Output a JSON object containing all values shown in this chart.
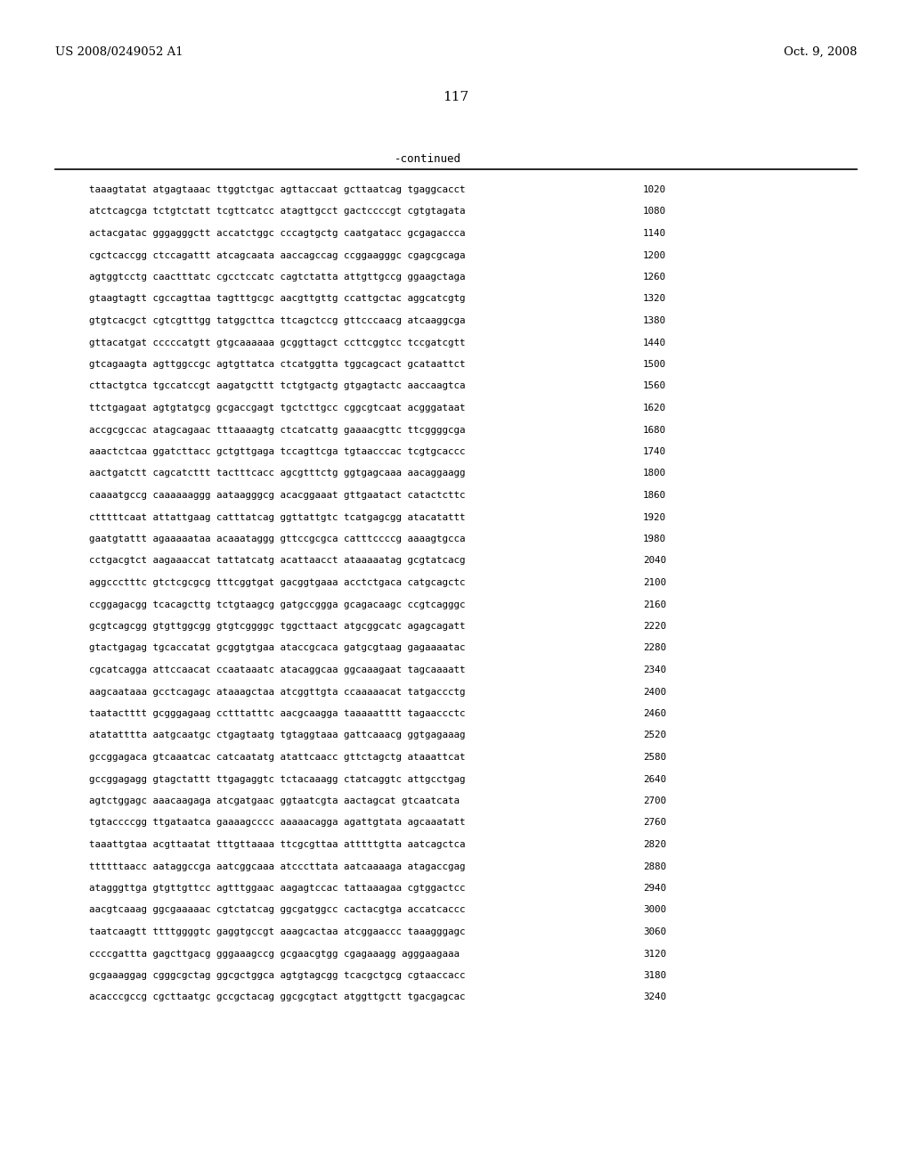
{
  "patent_number": "US 2008/0249052 A1",
  "date": "Oct. 9, 2008",
  "page_number": "117",
  "continued_label": "-continued",
  "background_color": "#ffffff",
  "text_color": "#000000",
  "sequence_lines": [
    {
      "seq": "taaagtatat atgagtaaac ttggtctgac agttaccaat gcttaatcag tgaggcacct",
      "num": "1020"
    },
    {
      "seq": "atctcagcga tctgtctatt tcgttcatcc atagttgcct gactccccgt cgtgtagata",
      "num": "1080"
    },
    {
      "seq": "actacgatac gggagggctt accatctggc cccagtgctg caatgatacc gcgagaccca",
      "num": "1140"
    },
    {
      "seq": "cgctcaccgg ctccagattt atcagcaata aaccagccag ccggaagggc cgagcgcaga",
      "num": "1200"
    },
    {
      "seq": "agtggtcctg caactttatc cgcctccatc cagtctatta attgttgccg ggaagctaga",
      "num": "1260"
    },
    {
      "seq": "gtaagtagtt cgccagttaa tagtttgcgc aacgttgttg ccattgctac aggcatcgtg",
      "num": "1320"
    },
    {
      "seq": "gtgtcacgct cgtcgtttgg tatggcttca ttcagctccg gttcccaacg atcaaggcga",
      "num": "1380"
    },
    {
      "seq": "gttacatgat cccccatgtt gtgcaaaaaa gcggttagct ccttcggtcc tccgatcgtt",
      "num": "1440"
    },
    {
      "seq": "gtcagaagta agttggccgc agtgttatca ctcatggtta tggcagcact gcataattct",
      "num": "1500"
    },
    {
      "seq": "cttactgtca tgccatccgt aagatgcttt tctgtgactg gtgagtactc aaccaagtca",
      "num": "1560"
    },
    {
      "seq": "ttctgagaat agtgtatgcg gcgaccgagt tgctcttgcc cggcgtcaat acgggataat",
      "num": "1620"
    },
    {
      "seq": "accgcgccac atagcagaac tttaaaagtg ctcatcattg gaaaacgttc ttcggggcga",
      "num": "1680"
    },
    {
      "seq": "aaactctcaa ggatcttacc gctgttgaga tccagttcga tgtaacccac tcgtgcaccc",
      "num": "1740"
    },
    {
      "seq": "aactgatctt cagcatcttt tactttcacc agcgtttctg ggtgagcaaa aacaggaagg",
      "num": "1800"
    },
    {
      "seq": "caaaatgccg caaaaaaggg aataagggcg acacggaaat gttgaatact catactcttc",
      "num": "1860"
    },
    {
      "seq": "ctttttcaat attattgaag catttatcag ggttattgtc tcatgagcgg atacatattt",
      "num": "1920"
    },
    {
      "seq": "gaatgtattt agaaaaataa acaaataggg gttccgcgca catttccccg aaaagtgcca",
      "num": "1980"
    },
    {
      "seq": "cctgacgtct aagaaaccat tattatcatg acattaacct ataaaaatag gcgtatcacg",
      "num": "2040"
    },
    {
      "seq": "aggccctttc gtctcgcgcg tttcggtgat gacggtgaaa acctctgaca catgcagctc",
      "num": "2100"
    },
    {
      "seq": "ccggagacgg tcacagcttg tctgtaagcg gatgccggga gcagacaagc ccgtcagggc",
      "num": "2160"
    },
    {
      "seq": "gcgtcagcgg gtgttggcgg gtgtcggggc tggcttaact atgcggcatc agagcagatt",
      "num": "2220"
    },
    {
      "seq": "gtactgagag tgcaccatat gcggtgtgaa ataccgcaca gatgcgtaag gagaaaatac",
      "num": "2280"
    },
    {
      "seq": "cgcatcagga attccaacat ccaataaatc atacaggcaa ggcaaagaat tagcaaaatt",
      "num": "2340"
    },
    {
      "seq": "aagcaataaa gcctcagagc ataaagctaa atcggttgta ccaaaaacat tatgaccctg",
      "num": "2400"
    },
    {
      "seq": "taatactttt gcgggagaag cctttatttc aacgcaagga taaaaatttt tagaaccctc",
      "num": "2460"
    },
    {
      "seq": "atatatttta aatgcaatgc ctgagtaatg tgtaggtaaa gattcaaacg ggtgagaaag",
      "num": "2520"
    },
    {
      "seq": "gccggagaca gtcaaatcac catcaatatg atattcaacc gttctagctg ataaattcat",
      "num": "2580"
    },
    {
      "seq": "gccggagagg gtagctattt ttgagaggtc tctacaaagg ctatcaggtc attgcctgag",
      "num": "2640"
    },
    {
      "seq": "agtctggagc aaacaagaga atcgatgaac ggtaatcgta aactagcat gtcaatcata",
      "num": "2700"
    },
    {
      "seq": "tgtaccccgg ttgataatca gaaaagcccc aaaaacagga agattgtata agcaaatatt",
      "num": "2760"
    },
    {
      "seq": "taaattgtaa acgttaatat tttgttaaaa ttcgcgttaa atttttgtta aatcagctca",
      "num": "2820"
    },
    {
      "seq": "ttttttaacc aataggccga aatcggcaaa atcccttata aatcaaaaga atagaccgag",
      "num": "2880"
    },
    {
      "seq": "atagggttga gtgttgttcc agtttggaac aagagtccac tattaaagaa cgtggactcc",
      "num": "2940"
    },
    {
      "seq": "aacgtcaaag ggcgaaaaac cgtctatcag ggcgatggcc cactacgtga accatcaccc",
      "num": "3000"
    },
    {
      "seq": "taatcaagtt ttttggggtc gaggtgccgt aaagcactaa atcggaaccc taaagggagc",
      "num": "3060"
    },
    {
      "seq": "ccccgattta gagcttgacg gggaaagccg gcgaacgtgg cgagaaagg agggaagaaa",
      "num": "3120"
    },
    {
      "seq": "gcgaaaggag cgggcgctag ggcgctggca agtgtagcgg tcacgctgcg cgtaaccacc",
      "num": "3180"
    },
    {
      "seq": "acacccgccg cgcttaatgc gccgctacag ggcgcgtact atggttgctt tgacgagcac",
      "num": "3240"
    }
  ]
}
